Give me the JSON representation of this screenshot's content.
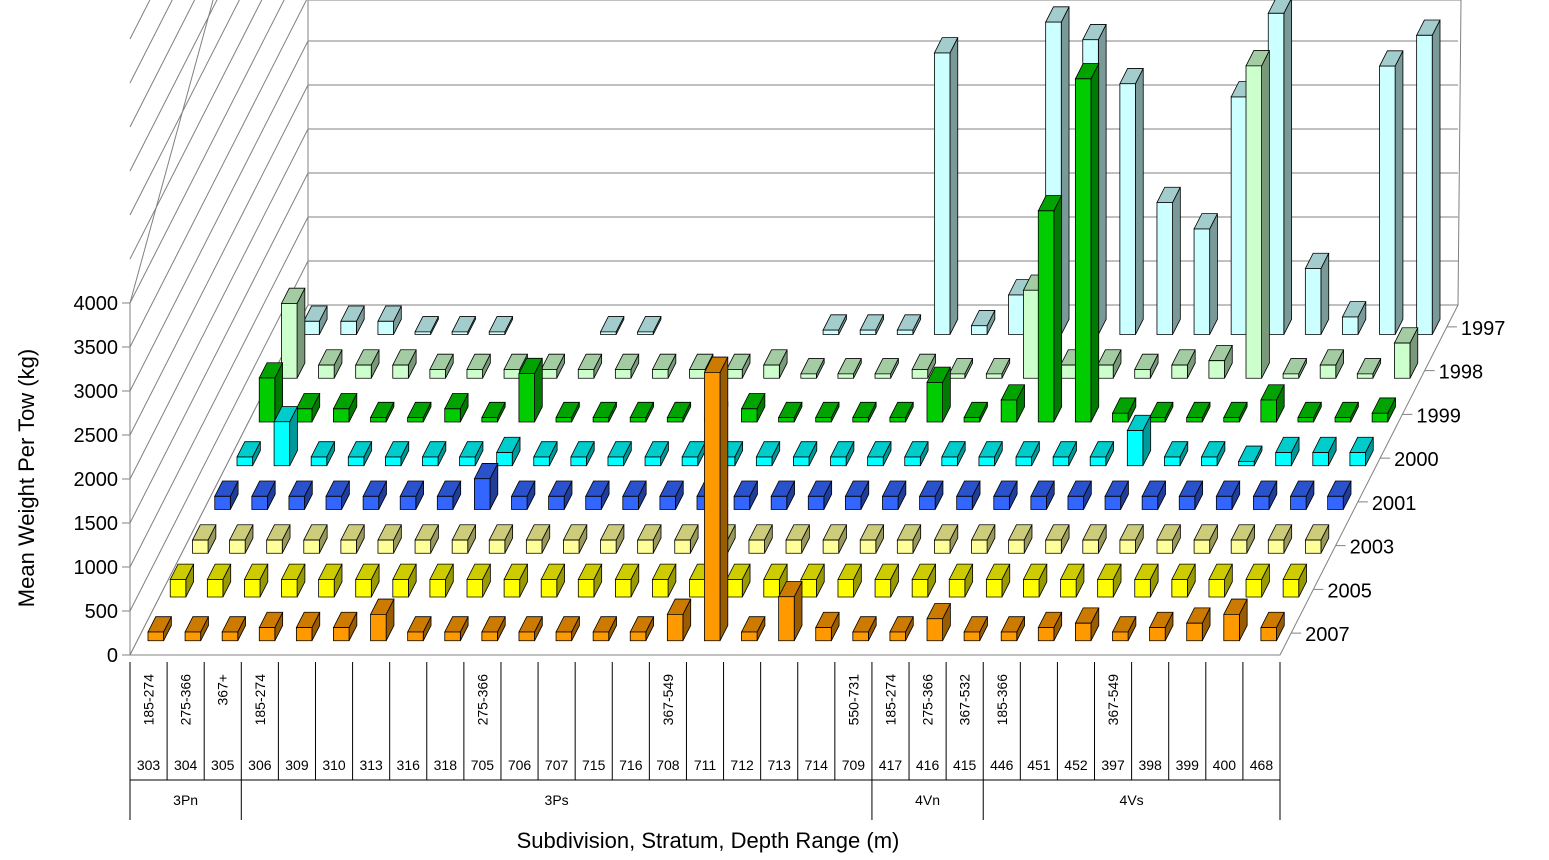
{
  "chart_data": {
    "type": "bar",
    "subtype": "3d-bar",
    "ylabel": "Mean Weight Per Tow (kg)",
    "xlabel": "Subdivision, Stratum, Depth Range (m)",
    "ylim": [
      0,
      4000
    ],
    "yticks": [
      "0",
      "500",
      "1000",
      "1500",
      "2000",
      "2500",
      "3000",
      "3500",
      "4000"
    ],
    "grid": true,
    "strata": [
      "303",
      "304",
      "305",
      "306",
      "309",
      "310",
      "313",
      "316",
      "318",
      "705",
      "706",
      "707",
      "715",
      "716",
      "708",
      "711",
      "712",
      "713",
      "714",
      "709",
      "417",
      "416",
      "415",
      "446",
      "451",
      "452",
      "397",
      "398",
      "399",
      "400",
      "468"
    ],
    "depth_labels": [
      {
        "label": "185-274",
        "stratum": "303"
      },
      {
        "label": "275-366",
        "stratum": "304"
      },
      {
        "label": "367+",
        "stratum": "305"
      },
      {
        "label": "185-274",
        "stratum": "306"
      },
      {
        "label": "275-366",
        "stratum": "705"
      },
      {
        "label": "367-549",
        "stratum": "708"
      },
      {
        "label": "550-731",
        "stratum": "709"
      },
      {
        "label": "185-274",
        "stratum": "417"
      },
      {
        "label": "275-366",
        "stratum": "416"
      },
      {
        "label": "367-532",
        "stratum": "415"
      },
      {
        "label": "185-366",
        "stratum": "446"
      },
      {
        "label": "367-549",
        "stratum": "397"
      }
    ],
    "subdivisions": [
      {
        "label": "3Pn",
        "from": "303",
        "to": "305"
      },
      {
        "label": "3Ps",
        "from": "306",
        "to": "709"
      },
      {
        "label": "4Vn",
        "from": "417",
        "to": "415"
      },
      {
        "label": "4Vs",
        "from": "446",
        "to": "468"
      }
    ],
    "series": [
      {
        "name": "1997",
        "color": "#ccffff",
        "values": [
          150,
          150,
          150,
          30,
          30,
          30,
          null,
          null,
          30,
          30,
          null,
          null,
          null,
          null,
          50,
          50,
          50,
          3200,
          100,
          450,
          3550,
          3350,
          2850,
          1500,
          1200,
          2700,
          3650,
          750,
          200,
          3050,
          3400
        ]
      },
      {
        "name": "1998",
        "color": "#ccffcc",
        "values": [
          850,
          150,
          150,
          150,
          100,
          100,
          100,
          100,
          100,
          100,
          100,
          100,
          100,
          150,
          50,
          50,
          50,
          100,
          50,
          50,
          1000,
          150,
          150,
          100,
          150,
          200,
          3550,
          50,
          150,
          50,
          400
        ]
      },
      {
        "name": "1999",
        "color": "#00cc00",
        "values": [
          500,
          150,
          150,
          50,
          50,
          150,
          50,
          550,
          50,
          50,
          50,
          50,
          50,
          150,
          50,
          50,
          50,
          50,
          450,
          50,
          250,
          2400,
          3900,
          100,
          50,
          50,
          50,
          250,
          50,
          50,
          100
        ]
      },
      {
        "name": "2000",
        "color": "#00ffff",
        "values": [
          100,
          500,
          100,
          100,
          100,
          100,
          100,
          150,
          100,
          100,
          100,
          100,
          100,
          100,
          100,
          100,
          100,
          100,
          100,
          100,
          100,
          100,
          100,
          100,
          400,
          100,
          100,
          50,
          150,
          150,
          150
        ]
      },
      {
        "name": "2001",
        "color": "#3366ff",
        "values": [
          150,
          150,
          150,
          150,
          150,
          150,
          150,
          350,
          150,
          150,
          150,
          150,
          150,
          150,
          150,
          150,
          150,
          150,
          150,
          150,
          150,
          150,
          150,
          150,
          150,
          150,
          150,
          150,
          150,
          150,
          150
        ]
      },
      {
        "name": "2003",
        "color": "#ffff99",
        "values": [
          150,
          150,
          150,
          150,
          150,
          150,
          150,
          150,
          150,
          150,
          150,
          150,
          150,
          150,
          150,
          150,
          150,
          150,
          150,
          150,
          150,
          150,
          150,
          150,
          150,
          150,
          150,
          150,
          150,
          150,
          150
        ]
      },
      {
        "name": "2005",
        "color": "#ffff00",
        "values": [
          200,
          200,
          200,
          200,
          200,
          200,
          200,
          200,
          200,
          200,
          200,
          200,
          200,
          200,
          200,
          200,
          200,
          200,
          200,
          200,
          200,
          200,
          200,
          200,
          200,
          200,
          200,
          200,
          200,
          200,
          200
        ]
      },
      {
        "name": "2007",
        "color": "#ff9900",
        "values": [
          100,
          100,
          100,
          150,
          150,
          150,
          300,
          100,
          100,
          100,
          100,
          100,
          100,
          100,
          300,
          3050,
          100,
          500,
          150,
          100,
          100,
          250,
          100,
          100,
          150,
          200,
          100,
          150,
          200,
          300,
          150
        ]
      }
    ]
  }
}
